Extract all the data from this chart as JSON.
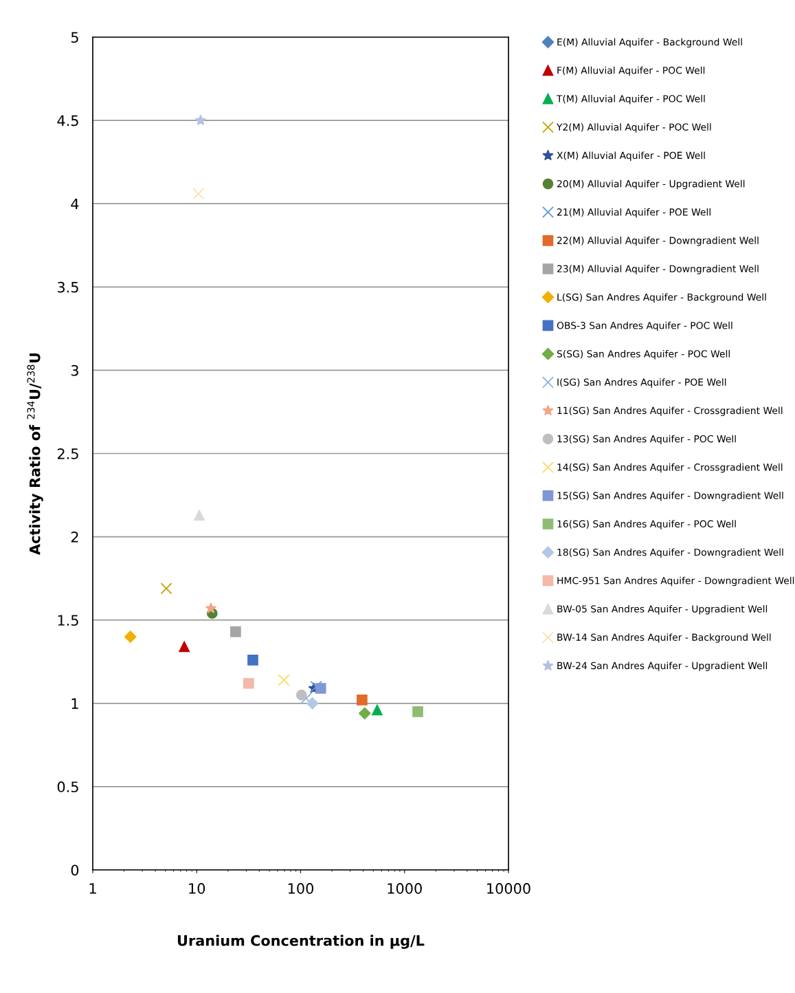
{
  "chart_data": {
    "type": "scatter",
    "xlabel": "Uranium Concentration in µg/L",
    "ylabel": "Activity Ratio of $^{234}$U/$^{238}$U",
    "log": "x",
    "xlim": [
      1,
      10000
    ],
    "xticks": [
      1,
      10,
      100,
      1000,
      10000
    ],
    "ylim": [
      0,
      5
    ],
    "yticks": [
      0,
      0.5,
      1,
      1.5,
      2,
      2.5,
      3,
      3.5,
      4,
      4.5,
      5
    ],
    "grid": "y",
    "legend": "right",
    "series": [
      {
        "name": "E(M) Alluvial Aquifer - Background Well",
        "color": "#4f81bd",
        "marker": "diamond"
      },
      {
        "name": "F(M) Alluvial Aquifer - POC Well",
        "color": "#c00000",
        "marker": "triangle",
        "x": [
          7.6
        ],
        "values": [
          1.34
        ]
      },
      {
        "name": "T(M) Alluvial Aquifer - POC Well",
        "color": "#00b050",
        "marker": "triangle",
        "x": [
          545
        ],
        "values": [
          0.96
        ]
      },
      {
        "name": "Y2(M) Alluvial Aquifer - POC Well",
        "color": "#c9a000",
        "marker": "x",
        "x": [
          5.1
        ],
        "values": [
          1.69
        ]
      },
      {
        "name": "X(M) Alluvial Aquifer - POE Well",
        "color": "#2f4f9f",
        "marker": "star",
        "x": [
          134
        ],
        "values": [
          1.09
        ]
      },
      {
        "name": "20(M) Alluvial Aquifer - Upgradient Well",
        "color": "#548235",
        "marker": "circle",
        "x": [
          14.1
        ],
        "values": [
          1.54
        ]
      },
      {
        "name": "21(M) Alluvial Aquifer - POE Well",
        "color": "#5b9bd5",
        "marker": "cross",
        "x": [
          141
        ],
        "values": [
          1.1
        ]
      },
      {
        "name": "22(M) Alluvial Aquifer - Downgradient Well",
        "color": "#e26b2a",
        "marker": "square",
        "x": [
          390
        ],
        "values": [
          1.02
        ]
      },
      {
        "name": "23(M) Alluvial Aquifer - Downgradient Well",
        "color": "#a5a5a5",
        "marker": "square",
        "x": [
          23.7
        ],
        "values": [
          1.43
        ]
      },
      {
        "name": "L(SG) San Andres Aquifer - Background Well",
        "color": "#f0b000",
        "marker": "diamond",
        "x": [
          2.3
        ],
        "values": [
          1.4
        ]
      },
      {
        "name": "OBS-3 San Andres Aquifer - POC Well",
        "color": "#4472c4",
        "marker": "square",
        "x": [
          34.7
        ],
        "values": [
          1.26
        ]
      },
      {
        "name": "S(SG) San Andres Aquifer - POC Well",
        "color": "#70ad47",
        "marker": "diamond",
        "x": [
          414
        ],
        "values": [
          0.94
        ]
      },
      {
        "name": "I(SG) San Andres Aquifer - POE Well",
        "color": "#8eb4e3",
        "marker": "x",
        "x": [
          113
        ],
        "values": [
          1.03
        ]
      },
      {
        "name": "11(SG) San Andres Aquifer - Crossgradient Well",
        "color": "#f4a582",
        "marker": "star",
        "x": [
          13.7
        ],
        "values": [
          1.57
        ]
      },
      {
        "name": "13(SG) San Andres Aquifer - POC Well",
        "color": "#bfbfbf",
        "marker": "circle",
        "x": [
          102
        ],
        "values": [
          1.05
        ]
      },
      {
        "name": "14(SG) San Andres Aquifer - Crossgradient Well",
        "color": "#ffd966",
        "marker": "cross",
        "x": [
          69
        ],
        "values": [
          1.14
        ]
      },
      {
        "name": "15(SG) San Andres Aquifer - Downgradient Well",
        "color": "#7f96d8",
        "marker": "square",
        "x": [
          156
        ],
        "values": [
          1.09
        ]
      },
      {
        "name": "16(SG) San Andres Aquifer - POC Well",
        "color": "#8fbc74",
        "marker": "square",
        "x": [
          1340
        ],
        "values": [
          0.95
        ]
      },
      {
        "name": "18(SG) San Andres Aquifer - Downgradient Well",
        "color": "#b4c7e7",
        "marker": "diamond",
        "x": [
          130
        ],
        "values": [
          1.0
        ]
      },
      {
        "name": "HMC-951 San Andres Aquifer - Downgradient Well",
        "color": "#f4b9a8",
        "marker": "square",
        "x": [
          31.6
        ],
        "values": [
          1.12
        ]
      },
      {
        "name": "BW-05 San Andres Aquifer - Upgradient Well",
        "color": "#d9d9d9",
        "marker": "triangle",
        "x": [
          10.6
        ],
        "values": [
          2.13
        ]
      },
      {
        "name": "BW-14 San Andres Aquifer - Background Well",
        "color": "#ffe0b0",
        "marker": "x",
        "x": [
          10.4
        ],
        "values": [
          4.06
        ]
      },
      {
        "name": "BW-24 San Andres Aquifer - Upgradient Well",
        "color": "#b4c0e4",
        "marker": "star",
        "x": [
          10.9
        ],
        "values": [
          4.5
        ]
      }
    ]
  }
}
